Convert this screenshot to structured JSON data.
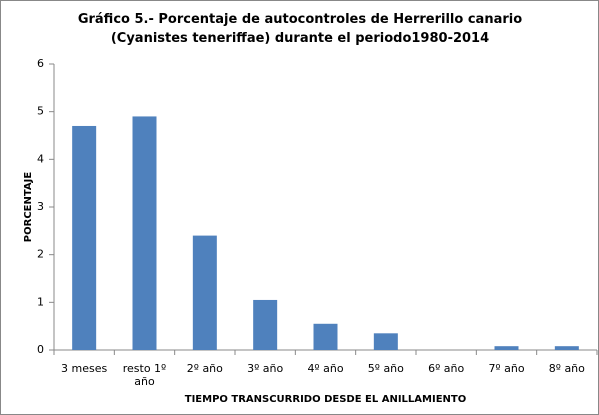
{
  "chart_data": {
    "type": "bar",
    "title": "Gráfico 5.- Porcentaje de autocontroles de Herrerillo canario (Cyanistes teneriffae) durante el periodo1980-2014",
    "x_label": "TIEMPO TRANSCURRIDO  DESDE  EL ANILLAMIENTO",
    "y_label": "PORCENTAJE",
    "categories": [
      "3 meses",
      "resto 1º año",
      "2º año",
      "3º año",
      "4º año",
      "5º año",
      "6º año",
      "7º año",
      "8º año"
    ],
    "values": [
      4.7,
      4.9,
      2.4,
      1.05,
      0.55,
      0.35,
      0,
      0.08,
      0.08
    ],
    "color": "#4f81bd",
    "ylim": [
      0,
      6
    ],
    "yticks": [
      0,
      1,
      2,
      3,
      4,
      5,
      6
    ],
    "grid": false
  }
}
